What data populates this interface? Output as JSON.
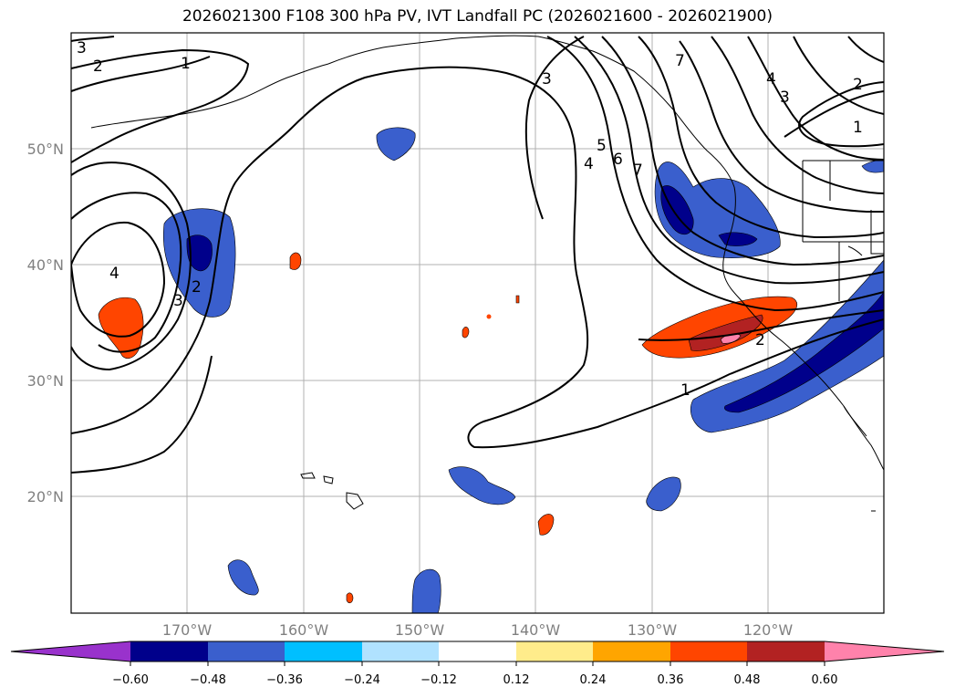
{
  "title": "2026021300 F108 300 hPa PV, IVT Landfall PC (2026021600 - 2026021900)",
  "lat_labels": [
    "50°N",
    "40°N",
    "30°N",
    "20°N"
  ],
  "lon_labels": [
    "170°W",
    "160°W",
    "150°W",
    "140°W",
    "130°W",
    "120°W"
  ],
  "colorbar": {
    "ticks": [
      "−0.60",
      "−0.48",
      "−0.36",
      "−0.24",
      "−0.12",
      "0.12",
      "0.24",
      "0.36",
      "0.48",
      "0.60"
    ],
    "colors": [
      "#9932cc",
      "#00008b",
      "#3a5fcd",
      "#00bfff",
      "#b0e2ff",
      "#ffffff",
      "#ffec8b",
      "#ffa500",
      "#ff4500",
      "#b22222",
      "#ff82ab"
    ]
  },
  "contour_labels": [
    "3",
    "2",
    "1",
    "4",
    "3",
    "2",
    "3",
    "5",
    "6",
    "4",
    "7",
    "7",
    "4",
    "3",
    "2",
    "1",
    "2",
    "1"
  ],
  "colors": {
    "negative_strong": "#00008b",
    "negative_mid": "#3a5fcd",
    "negative_weak": "#00bfff",
    "positive_weak": "#ffa500",
    "positive_mid": "#ff4500",
    "positive_strong": "#b22222",
    "positive_max": "#ff82ab"
  }
}
